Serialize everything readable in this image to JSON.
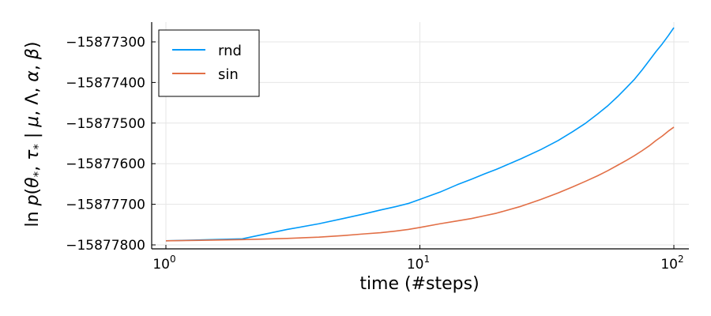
{
  "chart_data": {
    "type": "line",
    "xlabel": "time (#steps)",
    "ylabel": "ln p(θ*, τ* | μ, Λ, α, β)",
    "xscale": "log10",
    "xlim": [
      1,
      100
    ],
    "ylim": [
      -15877805,
      -15877250
    ],
    "xticks": [
      {
        "value": 1,
        "base": "10",
        "exp": "0"
      },
      {
        "value": 10,
        "base": "10",
        "exp": "1"
      },
      {
        "value": 100,
        "base": "10",
        "exp": "2"
      }
    ],
    "yticks": [
      {
        "value": -15877300,
        "label": "−15877300"
      },
      {
        "value": -15877400,
        "label": "−15877400"
      },
      {
        "value": -15877500,
        "label": "−15877500"
      },
      {
        "value": -15877600,
        "label": "−15877600"
      },
      {
        "value": -15877700,
        "label": "−15877700"
      },
      {
        "value": -15877800,
        "label": "−15877800"
      }
    ],
    "grid": true,
    "legend_position": "top-left",
    "series": [
      {
        "name": "rnd",
        "color": "#009AF9",
        "points": [
          [
            1,
            -15877790
          ],
          [
            2,
            -15877785
          ],
          [
            3,
            -15877762
          ],
          [
            4,
            -15877748
          ],
          [
            5,
            -15877735
          ],
          [
            6,
            -15877724
          ],
          [
            7,
            -15877714
          ],
          [
            8,
            -15877706
          ],
          [
            9,
            -15877698
          ],
          [
            10,
            -15877688
          ],
          [
            12,
            -15877670
          ],
          [
            14,
            -15877652
          ],
          [
            16,
            -15877638
          ],
          [
            18,
            -15877625
          ],
          [
            20,
            -15877614
          ],
          [
            25,
            -15877588
          ],
          [
            30,
            -15877565
          ],
          [
            35,
            -15877543
          ],
          [
            40,
            -15877521
          ],
          [
            45,
            -15877500
          ],
          [
            50,
            -15877478
          ],
          [
            55,
            -15877457
          ],
          [
            60,
            -15877435
          ],
          [
            65,
            -15877413
          ],
          [
            70,
            -15877392
          ],
          [
            75,
            -15877369
          ],
          [
            80,
            -15877346
          ],
          [
            85,
            -15877324
          ],
          [
            90,
            -15877305
          ],
          [
            95,
            -15877285
          ],
          [
            100,
            -15877265
          ]
        ]
      },
      {
        "name": "sin",
        "color": "#E26F46",
        "points": [
          [
            1,
            -15877790
          ],
          [
            2,
            -15877787
          ],
          [
            3,
            -15877784
          ],
          [
            4,
            -15877781
          ],
          [
            5,
            -15877777
          ],
          [
            6,
            -15877773
          ],
          [
            7,
            -15877770
          ],
          [
            8,
            -15877766
          ],
          [
            9,
            -15877762
          ],
          [
            10,
            -15877757
          ],
          [
            12,
            -15877748
          ],
          [
            14,
            -15877741
          ],
          [
            16,
            -15877735
          ],
          [
            18,
            -15877728
          ],
          [
            20,
            -15877722
          ],
          [
            25,
            -15877705
          ],
          [
            30,
            -15877688
          ],
          [
            35,
            -15877672
          ],
          [
            40,
            -15877657
          ],
          [
            45,
            -15877643
          ],
          [
            50,
            -15877630
          ],
          [
            55,
            -15877617
          ],
          [
            60,
            -15877604
          ],
          [
            65,
            -15877592
          ],
          [
            70,
            -15877580
          ],
          [
            75,
            -15877568
          ],
          [
            80,
            -15877556
          ],
          [
            85,
            -15877543
          ],
          [
            90,
            -15877532
          ],
          [
            95,
            -15877520
          ],
          [
            100,
            -15877510
          ]
        ]
      }
    ]
  }
}
